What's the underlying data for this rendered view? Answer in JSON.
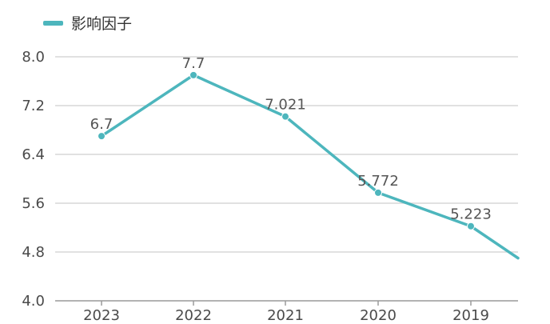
{
  "chart_data": {
    "type": "line",
    "categories": [
      "2023",
      "2022",
      "2021",
      "2020",
      "2019",
      ""
    ],
    "series": [
      {
        "name": "影响因子",
        "values": [
          6.7,
          7.7,
          7.021,
          5.772,
          5.223,
          4.7
        ],
        "labels": [
          "6.7",
          "7.7",
          "7.021",
          "5.772",
          "5.223",
          ""
        ],
        "color": "#4db6bd"
      }
    ],
    "ylim": [
      4.0,
      8.0
    ],
    "yticks": [
      "4.0",
      "4.8",
      "5.6",
      "6.4",
      "7.2",
      "8.0"
    ],
    "grid": true,
    "legend": "top-left"
  }
}
